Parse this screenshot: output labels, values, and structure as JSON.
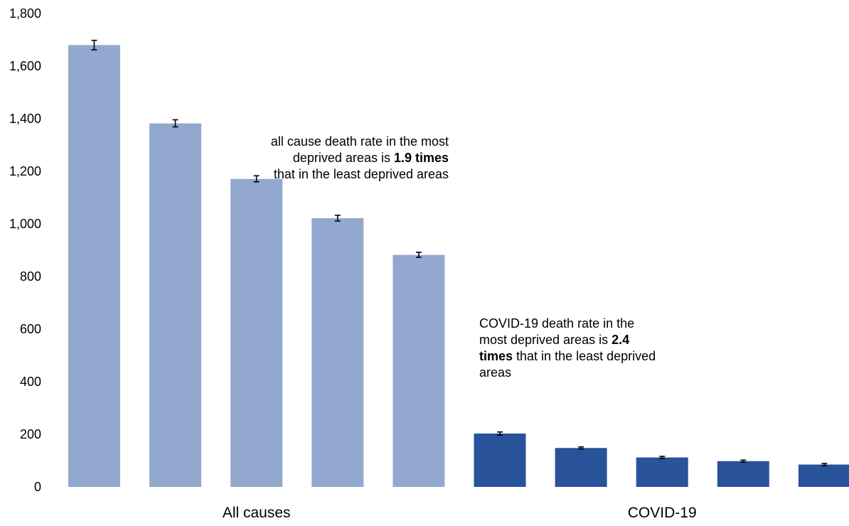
{
  "chart_data": {
    "type": "bar",
    "y_ticks": [
      "0",
      "200",
      "400",
      "600",
      "800",
      "1,000",
      "1,200",
      "1,400",
      "1,600",
      "1,800"
    ],
    "ylim": [
      0,
      1800
    ],
    "grid": false,
    "groups": [
      {
        "name": "All causes",
        "color": "#92a8ce",
        "values": [
          1680,
          1382,
          1171,
          1022,
          882
        ],
        "ci": [
          [
            1662,
            1698
          ],
          [
            1369,
            1396
          ],
          [
            1160,
            1183
          ],
          [
            1011,
            1033
          ],
          [
            873,
            892
          ]
        ]
      },
      {
        "name": "COVID-19",
        "color": "#28529a",
        "values": [
          203,
          148,
          112,
          98,
          85
        ],
        "ci": [
          [
            197,
            209
          ],
          [
            144,
            152
          ],
          [
            108,
            116
          ],
          [
            94,
            102
          ],
          [
            81,
            89
          ]
        ]
      }
    ],
    "annotations": [
      {
        "id": "all",
        "parts": [
          {
            "text": "all cause death rate in the most deprived areas is ",
            "bold": false
          },
          {
            "text": "1.9 times",
            "bold": true
          },
          {
            "text": " that in the least deprived areas",
            "bold": false
          }
        ]
      },
      {
        "id": "covid",
        "parts": [
          {
            "text": "COVID-19 death rate in the most deprived areas is ",
            "bold": false
          },
          {
            "text": "2.4 times",
            "bold": true
          },
          {
            "text": " that in the least deprived areas",
            "bold": false
          }
        ]
      }
    ]
  }
}
